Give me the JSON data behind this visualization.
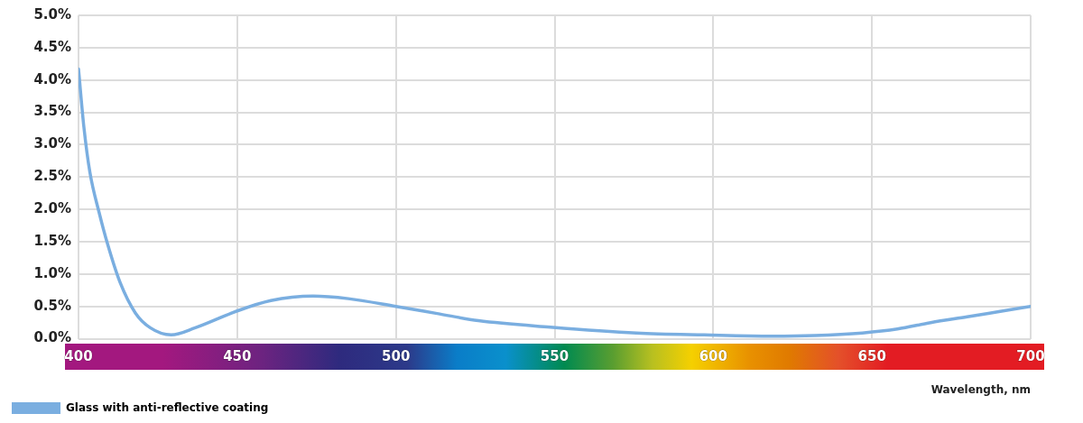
{
  "chart_data": {
    "type": "line",
    "xlabel": "Wavelength, nm",
    "x": [
      400,
      401.7,
      403.6,
      406.5,
      409.3,
      413.1,
      417.9,
      422.6,
      429.2,
      436.8,
      450,
      460.6,
      473.9,
      485,
      500,
      513,
      526,
      548.7,
      575.8,
      597.2,
      618.6,
      632,
      647,
      658,
      668.5,
      680,
      690,
      700
    ],
    "series": [
      {
        "name": "Glass with anti-reflective coating",
        "color": "#7aaee0",
        "values": [
          4.17,
          3.27,
          2.57,
          1.95,
          1.44,
          0.87,
          0.4,
          0.17,
          0.06,
          0.17,
          0.43,
          0.59,
          0.66,
          0.62,
          0.5,
          0.39,
          0.28,
          0.18,
          0.09,
          0.06,
          0.04,
          0.05,
          0.09,
          0.15,
          0.25,
          0.34,
          0.42,
          0.5
        ]
      }
    ],
    "xlim": [
      400,
      700
    ],
    "xticks": [
      400,
      450,
      500,
      550,
      600,
      650,
      700
    ],
    "ylim": [
      0,
      5
    ],
    "yticks": [
      {
        "value": 0,
        "label": "0.0%"
      },
      {
        "value": 0.5,
        "label": "0.5%"
      },
      {
        "value": 1,
        "label": "1.0%"
      },
      {
        "value": 1.5,
        "label": "1.5%"
      },
      {
        "value": 2,
        "label": "2.0%"
      },
      {
        "value": 2.5,
        "label": "2.5%"
      },
      {
        "value": 3,
        "label": "3.0%"
      },
      {
        "value": 3.5,
        "label": "3.5%"
      },
      {
        "value": 4,
        "label": "4.0%"
      },
      {
        "value": 4.5,
        "label": "4.5%"
      },
      {
        "value": 5,
        "label": "5.0%"
      }
    ],
    "grid": true,
    "legend": "bottom left",
    "marker": "none",
    "line_style": "solid"
  }
}
